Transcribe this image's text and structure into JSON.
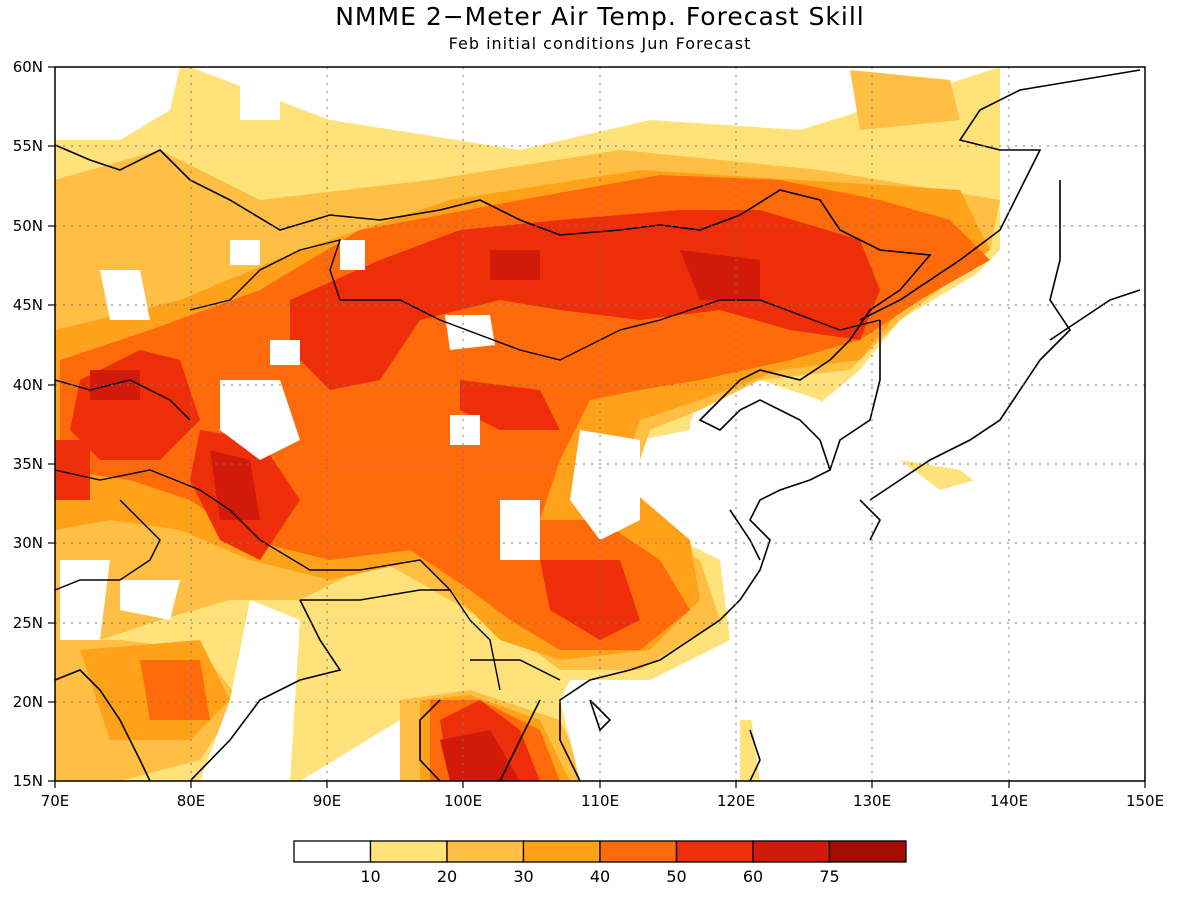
{
  "title": "NMME 2−Meter Air Temp. Forecast Skill",
  "subtitle": "Feb initial conditions  Jun Forecast",
  "map": {
    "lon_range": [
      70,
      150
    ],
    "lat_range": [
      15,
      60
    ],
    "lon_ticks": [
      "70E",
      "80E",
      "90E",
      "100E",
      "110E",
      "120E",
      "130E",
      "140E",
      "150E"
    ],
    "lat_ticks": [
      "15N",
      "20N",
      "25N",
      "30N",
      "35N",
      "40N",
      "45N",
      "50N",
      "55N",
      "60N"
    ],
    "grid": "dotted"
  },
  "colorbar": {
    "bins": [
      {
        "color": "#ffffff"
      },
      {
        "color": "#ffe27a"
      },
      {
        "color": "#ffbf44"
      },
      {
        "color": "#ffa21a"
      },
      {
        "color": "#ff6a0a"
      },
      {
        "color": "#ee2e08"
      },
      {
        "color": "#d11a0a"
      },
      {
        "color": "#a30d06"
      }
    ],
    "labels": [
      "10",
      "20",
      "30",
      "40",
      "50",
      "60",
      "75"
    ]
  },
  "regions": [
    {
      "name": "mongolia-band",
      "level": 5
    },
    {
      "name": "tibet-west",
      "level": 5
    },
    {
      "name": "south-china",
      "level": 5
    },
    {
      "name": "indochina",
      "level": 6
    },
    {
      "name": "india-central",
      "level": 3
    },
    {
      "name": "siberia-north",
      "level": 2
    },
    {
      "name": "tarim-core",
      "level": 0
    },
    {
      "name": "east-china",
      "level": 0
    },
    {
      "name": "japan-sea",
      "level": 0
    }
  ]
}
